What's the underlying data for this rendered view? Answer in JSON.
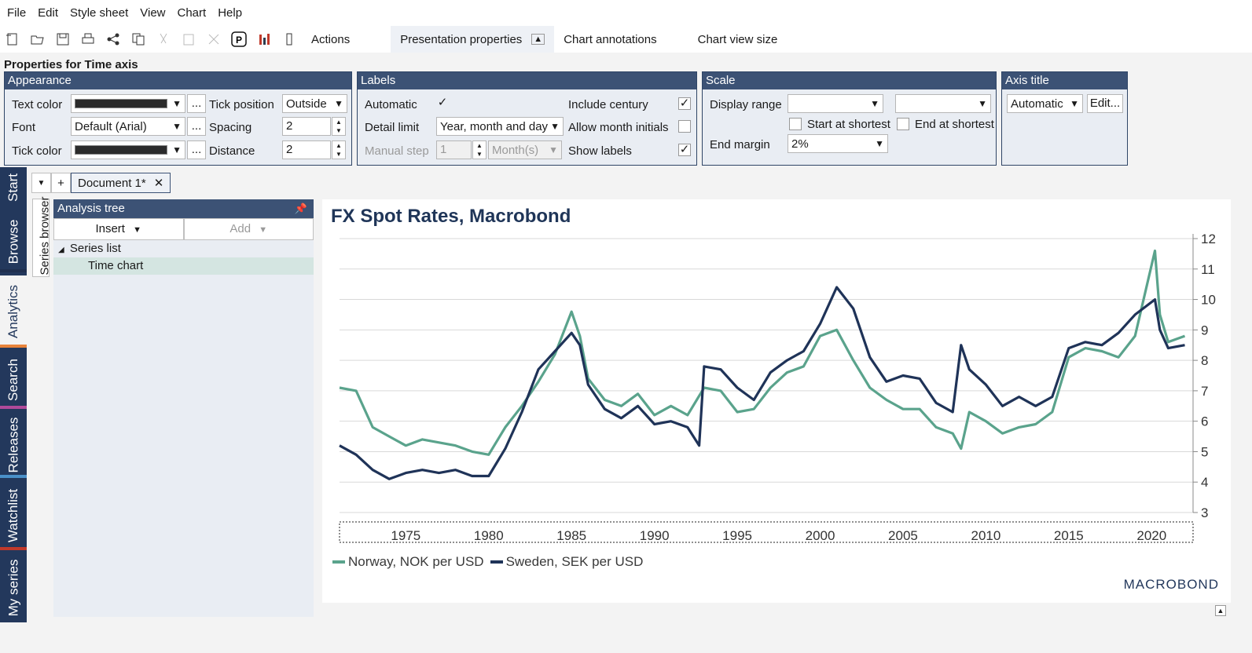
{
  "menu": [
    "File",
    "Edit",
    "Style sheet",
    "View",
    "Chart",
    "Help"
  ],
  "toolbar": {
    "actions": "Actions",
    "presentation": "Presentation properties",
    "annotations": "Chart annotations",
    "viewsize": "Chart view size"
  },
  "props_title": "Properties for Time axis",
  "appearance": {
    "title": "Appearance",
    "text_color": "Text color",
    "font": "Font",
    "font_value": "Default (Arial)",
    "tick_color": "Tick color",
    "tick_position": "Tick position",
    "tick_position_value": "Outside",
    "spacing": "Spacing",
    "spacing_value": "2",
    "distance": "Distance",
    "distance_value": "2",
    "ellipsis": "..."
  },
  "labels": {
    "title": "Labels",
    "automatic": "Automatic",
    "detail_limit": "Detail limit",
    "detail_value": "Year, month and day",
    "manual_step": "Manual step",
    "manual_step_value": "1",
    "unit": "Month(s)",
    "include_century": "Include century",
    "allow_month_initials": "Allow month initials",
    "show_labels": "Show labels",
    "check": "✓"
  },
  "scale": {
    "title": "Scale",
    "display_range": "Display range",
    "start_at_shortest": "Start at shortest",
    "end_at_shortest": "End at shortest",
    "end_margin": "End margin",
    "end_margin_value": "2%"
  },
  "axis_title": {
    "title": "Axis title",
    "value": "Automatic",
    "edit": "Edit..."
  },
  "sidetabs": [
    "Start",
    "Browse",
    "Analytics",
    "Search",
    "Releases",
    "Watchlist",
    "My series"
  ],
  "doc_tab": "Document 1*",
  "series_browser": "Series browser",
  "tree": {
    "title": "Analysis tree",
    "insert": "Insert",
    "add": "Add",
    "series_list": "Series list",
    "time_chart": "Time chart"
  },
  "brand": "MACROBOND",
  "colors": {
    "norway": "#5aa38c",
    "sweden": "#1f3358",
    "header": "#3c5275"
  },
  "chart_data": {
    "type": "line",
    "title": "FX Spot Rates, Macrobond",
    "xlabel": "",
    "ylabel": "",
    "xlim": [
      1971,
      2022.5
    ],
    "ylim": [
      3,
      12
    ],
    "yticks": [
      3,
      4,
      5,
      6,
      7,
      8,
      9,
      10,
      11,
      12
    ],
    "xticks": [
      1975,
      1980,
      1985,
      1990,
      1995,
      2000,
      2005,
      2010,
      2015,
      2020
    ],
    "y_axis_side": "right",
    "grid": true,
    "legend_position": "bottom-left",
    "series": [
      {
        "name": "Norway, NOK per USD",
        "x": [
          1971,
          1972,
          1973,
          1974,
          1975,
          1976,
          1977,
          1978,
          1979,
          1980,
          1981,
          1982,
          1983,
          1984,
          1985,
          1985.5,
          1986,
          1987,
          1988,
          1989,
          1990,
          1991,
          1992,
          1993,
          1994,
          1995,
          1996,
          1997,
          1998,
          1999,
          2000,
          2001,
          2002,
          2003,
          2004,
          2005,
          2006,
          2007,
          2008,
          2008.5,
          2009,
          2010,
          2011,
          2012,
          2013,
          2014,
          2015,
          2016,
          2017,
          2018,
          2019,
          2020.2,
          2020.5,
          2021,
          2022
        ],
        "values": [
          7.1,
          7.0,
          5.8,
          5.5,
          5.2,
          5.4,
          5.3,
          5.2,
          5.0,
          4.9,
          5.8,
          6.5,
          7.3,
          8.2,
          9.6,
          8.8,
          7.4,
          6.7,
          6.5,
          6.9,
          6.2,
          6.5,
          6.2,
          7.1,
          7.0,
          6.3,
          6.4,
          7.1,
          7.6,
          7.8,
          8.8,
          9.0,
          8.0,
          7.1,
          6.7,
          6.4,
          6.4,
          5.8,
          5.6,
          5.1,
          6.3,
          6.0,
          5.6,
          5.8,
          5.9,
          6.3,
          8.1,
          8.4,
          8.3,
          8.1,
          8.8,
          11.6,
          9.5,
          8.6,
          8.8
        ]
      },
      {
        "name": "Sweden, SEK per USD",
        "x": [
          1971,
          1972,
          1973,
          1974,
          1975,
          1976,
          1977,
          1978,
          1979,
          1980,
          1981,
          1982,
          1983,
          1984,
          1985,
          1985.5,
          1986,
          1987,
          1988,
          1989,
          1990,
          1991,
          1992,
          1992.7,
          1993,
          1994,
          1995,
          1996,
          1997,
          1998,
          1999,
          2000,
          2001,
          2002,
          2003,
          2004,
          2005,
          2006,
          2007,
          2008,
          2008.5,
          2009,
          2010,
          2011,
          2012,
          2013,
          2014,
          2015,
          2016,
          2017,
          2018,
          2019,
          2020.2,
          2020.5,
          2021,
          2022
        ],
        "values": [
          5.2,
          4.9,
          4.4,
          4.1,
          4.3,
          4.4,
          4.3,
          4.4,
          4.2,
          4.2,
          5.1,
          6.3,
          7.7,
          8.3,
          8.9,
          8.5,
          7.2,
          6.4,
          6.1,
          6.5,
          5.9,
          6.0,
          5.8,
          5.2,
          7.8,
          7.7,
          7.1,
          6.7,
          7.6,
          8.0,
          8.3,
          9.2,
          10.4,
          9.7,
          8.1,
          7.3,
          7.5,
          7.4,
          6.6,
          6.3,
          8.5,
          7.7,
          7.2,
          6.5,
          6.8,
          6.5,
          6.8,
          8.4,
          8.6,
          8.5,
          8.9,
          9.5,
          10.0,
          9.0,
          8.4,
          8.5
        ]
      }
    ]
  }
}
